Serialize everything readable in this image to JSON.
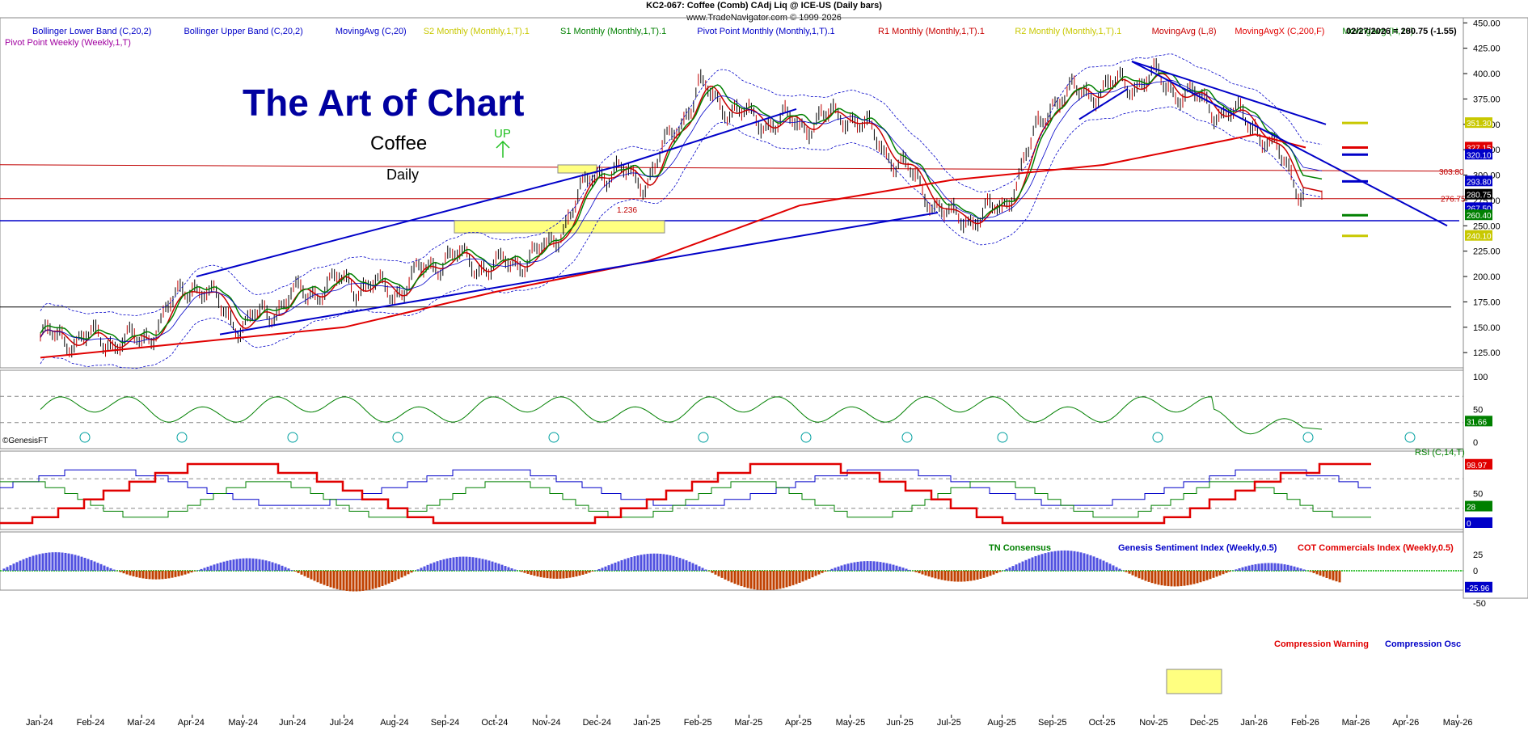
{
  "header": {
    "line1": "KC2-067:  Coffee (Comb) CAdj Liq @ ICE-US  (Daily bars)",
    "line2": "www.TradeNavigator.com © 1999-2026"
  },
  "legend": [
    {
      "label": "Bollinger Lower Band (C,20,2)",
      "color": "#0000c8"
    },
    {
      "label": "Bollinger Upper Band (C,20,2)",
      "color": "#0000c8"
    },
    {
      "label": "MovingAvg (C,20)",
      "color": "#0000c8"
    },
    {
      "label": "S2 Monthly (Monthly,1,T).1",
      "color": "#c8c800"
    },
    {
      "label": "S1 Monthly (Monthly,1,T).1",
      "color": "#008000"
    },
    {
      "label": "Pivot Point Monthly (Monthly,1,T).1",
      "color": "#0000c8"
    },
    {
      "label": "R1 Monthly (Monthly,1,T).1",
      "color": "#c80000"
    },
    {
      "label": "R2 Monthly (Monthly,1,T).1",
      "color": "#c8c800"
    },
    {
      "label": "MovingAvg (L,8)",
      "color": "#c80000"
    },
    {
      "label": "MovingAvgX (C,200,F)",
      "color": "#e00000"
    },
    {
      "label": "MovingAvg (H,10)",
      "color": "#008000"
    }
  ],
  "legend_extra": "Pivot Point Weekly (Weekly,1,T)",
  "last_quote": "02/27/2026 = 280.75 (-1.55)",
  "annotations": {
    "title": "The Art of Chart",
    "subtitle": "Coffee",
    "timeframe": "Daily",
    "up_label": "UP",
    "fib_label": "1.236",
    "level_303": "303.80",
    "level_276": "276.75",
    "genesis": "©GenesisFT"
  },
  "colors": {
    "price_up": "#000000",
    "ma_fast": "#c80000",
    "ma_200": "#e00000",
    "ma_high": "#008000",
    "bollinger": "#0000c8",
    "trend": "#0000c8",
    "title": "#0000a0"
  },
  "chart_data": [
    {
      "type": "line",
      "name_panel": "price",
      "x_months": [
        "Jan-24",
        "Feb-24",
        "Mar-24",
        "Apr-24",
        "May-24",
        "Jun-24",
        "Jul-24",
        "Aug-24",
        "Sep-24",
        "Oct-24",
        "Nov-24",
        "Dec-24",
        "Jan-25",
        "Feb-25",
        "Mar-25",
        "Apr-25",
        "May-25",
        "Jun-25",
        "Jul-25",
        "Aug-25",
        "Sep-25",
        "Oct-25",
        "Nov-25",
        "Dec-25",
        "Jan-26",
        "Feb-26",
        "Mar-26",
        "Apr-26",
        "May-26"
      ],
      "y_ticks": [
        125,
        150,
        175,
        200,
        225,
        250,
        275,
        300,
        325,
        350,
        375,
        400,
        425,
        450
      ],
      "ylim": [
        110,
        455
      ],
      "close_monthly": [
        {
          "x": "Jan-24",
          "y": 140
        },
        {
          "x": "Feb-24",
          "y": 138
        },
        {
          "x": "Mar-24",
          "y": 135
        },
        {
          "x": "Apr-24",
          "y": 195
        },
        {
          "x": "May-24",
          "y": 150
        },
        {
          "x": "Jun-24",
          "y": 180
        },
        {
          "x": "Jul-24",
          "y": 195
        },
        {
          "x": "Aug-24",
          "y": 185
        },
        {
          "x": "Sep-24",
          "y": 220
        },
        {
          "x": "Oct-24",
          "y": 208
        },
        {
          "x": "Nov-24",
          "y": 225
        },
        {
          "x": "Dec-24",
          "y": 305
        },
        {
          "x": "Jan-25",
          "y": 295
        },
        {
          "x": "Feb-25",
          "y": 385
        },
        {
          "x": "Mar-25",
          "y": 355
        },
        {
          "x": "Apr-25",
          "y": 350
        },
        {
          "x": "May-25",
          "y": 360
        },
        {
          "x": "Jun-25",
          "y": 310
        },
        {
          "x": "Jul-25",
          "y": 255
        },
        {
          "x": "Aug-25",
          "y": 265
        },
        {
          "x": "Sep-25",
          "y": 375
        },
        {
          "x": "Oct-25",
          "y": 385
        },
        {
          "x": "Nov-25",
          "y": 395
        },
        {
          "x": "Dec-25",
          "y": 370
        },
        {
          "x": "Jan-26",
          "y": 350
        },
        {
          "x": "Feb-26",
          "y": 280.75
        }
      ],
      "ma200_monthly": [
        {
          "x": "Jan-24",
          "y": 120
        },
        {
          "x": "Apr-24",
          "y": 135
        },
        {
          "x": "Jul-24",
          "y": 150
        },
        {
          "x": "Oct-24",
          "y": 185
        },
        {
          "x": "Jan-25",
          "y": 215
        },
        {
          "x": "Apr-25",
          "y": 270
        },
        {
          "x": "Jul-25",
          "y": 295
        },
        {
          "x": "Oct-25",
          "y": 310
        },
        {
          "x": "Jan-26",
          "y": 340
        },
        {
          "x": "Feb-26",
          "y": 327.15
        }
      ],
      "horizontal_levels": [
        {
          "value": 351.3,
          "label": "351.30",
          "color": "#c8c800"
        },
        {
          "value": 327.15,
          "label": "327.15",
          "color": "#e00000"
        },
        {
          "value": 320.1,
          "label": "320.10",
          "color": "#0000c8"
        },
        {
          "value": 293.8,
          "label": "293.80",
          "color": "#0000c8"
        },
        {
          "value": 280.75,
          "label": "280.75",
          "color": "#000000"
        },
        {
          "value": 267.5,
          "label": "267.50",
          "color": "#0000c8"
        },
        {
          "value": 260.4,
          "label": "260.40",
          "color": "#008000"
        },
        {
          "value": 240.1,
          "label": "240.10",
          "color": "#c8c800"
        }
      ]
    },
    {
      "type": "line",
      "name_panel": "rsi",
      "series_label": "RSI (C,14,T)",
      "y_ticks": [
        0,
        50,
        100
      ],
      "last_value": "31.66"
    },
    {
      "type": "line",
      "name_panel": "sentiment",
      "series_labels": [
        "TN Consensus",
        "Genesis Sentiment Index (Weekly,0.5)",
        "COT Commercials Index (Weekly,0.5)"
      ],
      "y_ticks": [
        0,
        50,
        100
      ],
      "last_values": [
        "98.97",
        "28",
        "0"
      ]
    },
    {
      "type": "area",
      "name_panel": "compression",
      "series_labels": [
        "Compression Warning",
        "Compression Osc"
      ],
      "y_ticks": [
        -50,
        -25,
        0,
        25
      ],
      "last_value": "-25.96"
    }
  ]
}
